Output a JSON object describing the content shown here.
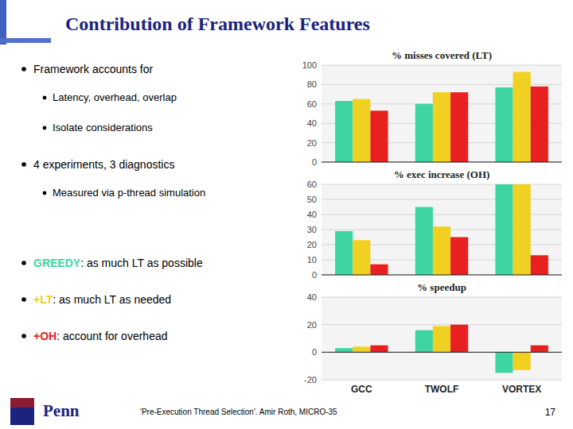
{
  "title": "Contribution of Framework Features",
  "bullets": [
    {
      "text": "Framework accounts for",
      "items": [
        "Latency, overhead, overlap",
        "Isolate considerations"
      ]
    },
    {
      "text": "4 experiments, 3 diagnostics",
      "items": [
        "Measured via p-thread simulation"
      ]
    }
  ],
  "key": [
    ": as much LT as possible",
    ": as much LT as needed",
    ": account for overhead"
  ],
  "logo": "Penn",
  "footer": "'Pre-Execution Thread Selection'.  Amir Roth, MICRO-35",
  "page": "17",
  "chart_data": [
    {
      "type": "bar",
      "title": "% misses covered (LT)",
      "categories": [
        "GCC",
        "TWOLF",
        "VORTEX"
      ],
      "series": [
        {
          "name": "GREEDY",
          "color": "#3dd6a3",
          "values": [
            63,
            60,
            77
          ]
        },
        {
          "name": "+LT",
          "color": "#f0d020",
          "values": [
            65,
            72,
            93
          ]
        },
        {
          "name": "+OH",
          "color": "#e82020",
          "values": [
            53,
            72,
            78
          ]
        }
      ],
      "ylim": [
        0,
        100
      ],
      "yticks": [
        0,
        20,
        40,
        60,
        80,
        100
      ],
      "grid": true,
      "tick_labels": "y"
    },
    {
      "type": "bar",
      "title": "% exec increase (OH)",
      "categories": [
        "GCC",
        "TWOLF",
        "VORTEX"
      ],
      "series": [
        {
          "color": "#3dd6a3",
          "values": [
            29,
            45,
            60
          ]
        },
        {
          "color": "#f0d020",
          "values": [
            23,
            32,
            60
          ]
        },
        {
          "color": "#e82020",
          "values": [
            7,
            25,
            13
          ]
        }
      ],
      "ylim": [
        0,
        60
      ],
      "yticks": [
        0,
        10,
        20,
        30,
        40,
        50,
        60
      ],
      "grid": true,
      "tick_labels": "y"
    },
    {
      "type": "bar",
      "title": "% speedup",
      "categories": [
        "GCC",
        "TWOLF",
        "VORTEX"
      ],
      "series": [
        {
          "color": "#3dd6a3",
          "values": [
            3,
            16,
            -15
          ]
        },
        {
          "color": "#f0d020",
          "values": [
            4,
            19,
            -13
          ]
        },
        {
          "color": "#e82020",
          "values": [
            5,
            20,
            5
          ]
        }
      ],
      "ylim": [
        -20,
        40
      ],
      "yticks": [
        -20,
        0,
        20,
        40
      ],
      "grid": true,
      "tick_labels": true
    }
  ]
}
